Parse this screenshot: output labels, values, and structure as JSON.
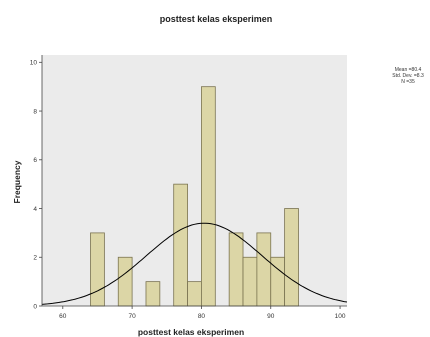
{
  "chart_data": {
    "type": "bar",
    "title": "posttest kelas eksperimen",
    "xlabel": "posttest kelas eksperimen",
    "ylabel": "Frequency",
    "xlim": [
      57,
      101
    ],
    "ylim": [
      0,
      10.3
    ],
    "xticks": [
      60,
      70,
      80,
      90,
      100
    ],
    "yticks": [
      0,
      2,
      4,
      6,
      8,
      10
    ],
    "bin_width": 2,
    "bins": [
      {
        "start": 64,
        "value": 3
      },
      {
        "start": 68,
        "value": 2
      },
      {
        "start": 72,
        "value": 1
      },
      {
        "start": 76,
        "value": 5
      },
      {
        "start": 78,
        "value": 1
      },
      {
        "start": 80,
        "value": 9
      },
      {
        "start": 84,
        "value": 3
      },
      {
        "start": 86,
        "value": 2
      },
      {
        "start": 88,
        "value": 3
      },
      {
        "start": 90,
        "value": 2
      },
      {
        "start": 92,
        "value": 4
      }
    ],
    "normal_curve": {
      "peak_x": 80.4,
      "sd": 8.35,
      "peak_y": 3.4
    },
    "stats": {
      "mean": "Mean =80.4",
      "sd": "Std. Dev. =8.3",
      "n": "N =35"
    },
    "colors": {
      "bar_fill": "#dcd6a6",
      "bar_stroke": "#7a7350",
      "plot_bg": "#ebebeb",
      "curve": "#000000"
    }
  }
}
